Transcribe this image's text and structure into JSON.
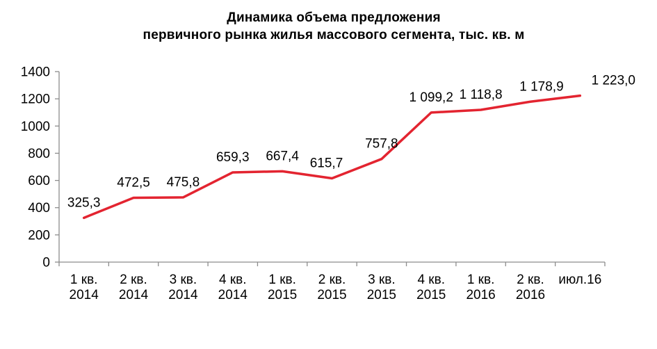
{
  "title": {
    "line1": "Динамика объема предложения",
    "line2": "первичного рынка жилья массового сегмента, тыс. кв. м"
  },
  "chart_data": {
    "type": "line",
    "title": "Динамика объема предложения первичного рынка жилья массового сегмента, тыс. кв. м",
    "categories": [
      "1 кв. 2014",
      "2 кв. 2014",
      "3 кв. 2014",
      "4 кв. 2014",
      "1 кв. 2015",
      "2 кв. 2015",
      "3 кв. 2015",
      "4 кв. 2015",
      "1 кв. 2016",
      "2 кв. 2016",
      "июл.16"
    ],
    "values": [
      325.3,
      472.5,
      475.8,
      659.3,
      667.4,
      615.7,
      757.8,
      1099.2,
      1118.8,
      1178.9,
      1223.0
    ],
    "value_labels": [
      "325,3",
      "472,5",
      "475,8",
      "659,3",
      "667,4",
      "615,7",
      "757,8",
      "1 099,2",
      "1 118,8",
      "1 178,9",
      "1 223,0"
    ],
    "yticks": [
      0,
      200,
      400,
      600,
      800,
      1000,
      1200,
      1400
    ],
    "ylim": [
      0,
      1400
    ],
    "xlabel": "",
    "ylabel": "",
    "grid": false,
    "legend_position": "none",
    "line_color": "#e32430",
    "axis_color": "#8c8c8c",
    "text_color": "#000000"
  }
}
